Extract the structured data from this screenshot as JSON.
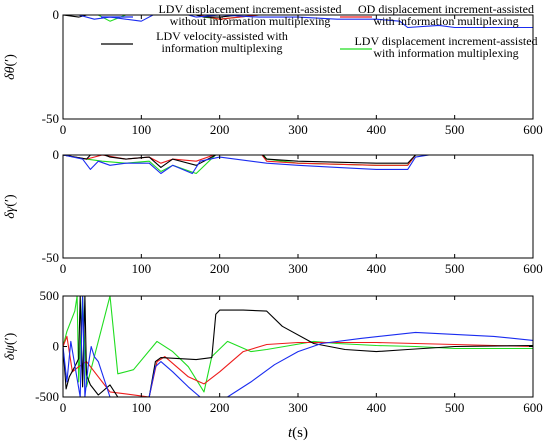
{
  "chart_data": {
    "type": "line",
    "colors": {
      "blue": "#1a2cf0",
      "black": "#000000",
      "red": "#ee1c1c",
      "green": "#20dd20"
    },
    "legend": [
      {
        "lines": [
          "LDV displacement increment-assisted",
          "without information multiplexing"
        ],
        "color": "blue"
      },
      {
        "lines": [
          "OD displacement increment-assisted",
          "with information multiplexing"
        ],
        "color": "red"
      },
      {
        "lines": [
          "LDV velocity-assisted with",
          "information multiplexing"
        ],
        "color": "black"
      },
      {
        "lines": [
          "LDV displacement increment-assisted",
          "with information multiplexing"
        ],
        "color": "green"
      }
    ],
    "xlabel_var": "t",
    "xlabel_unit": "(s)",
    "x_ticks": [
      "0",
      "100",
      "200",
      "300",
      "400",
      "500",
      "600"
    ],
    "xlim": [
      0,
      600
    ],
    "panels": [
      {
        "ylabel_sym": "δθ",
        "ylabel_unit": "(′)",
        "ylim": [
          -50,
          0
        ],
        "y_ticks": [
          "0",
          "-50"
        ],
        "series": {
          "blue": [
            [
              0,
              0
            ],
            [
              20,
              0
            ],
            [
              40,
              -2
            ],
            [
              60,
              -1
            ],
            [
              80,
              -2
            ],
            [
              100,
              -3
            ],
            [
              120,
              1
            ],
            [
              140,
              2
            ],
            [
              170,
              -1
            ],
            [
              200,
              0
            ],
            [
              250,
              -1
            ],
            [
              300,
              -1
            ],
            [
              350,
              -2
            ],
            [
              400,
              -2
            ],
            [
              430,
              -3
            ],
            [
              440,
              -6
            ],
            [
              480,
              -5
            ],
            [
              500,
              -6
            ],
            [
              600,
              -6
            ]
          ],
          "black": [
            [
              0,
              0
            ],
            [
              20,
              -1
            ],
            [
              40,
              1
            ],
            [
              60,
              2
            ],
            [
              80,
              1
            ],
            [
              100,
              2
            ],
            [
              120,
              3
            ],
            [
              140,
              2
            ],
            [
              160,
              1
            ],
            [
              180,
              -1
            ],
            [
              200,
              -1
            ],
            [
              250,
              1
            ],
            [
              300,
              0
            ],
            [
              400,
              1
            ],
            [
              500,
              0
            ],
            [
              600,
              0
            ]
          ],
          "red": [
            [
              0,
              0
            ],
            [
              30,
              0
            ],
            [
              60,
              1
            ],
            [
              100,
              1
            ],
            [
              130,
              3
            ],
            [
              150,
              5
            ],
            [
              170,
              0
            ],
            [
              200,
              -2
            ],
            [
              250,
              0
            ],
            [
              300,
              1
            ],
            [
              400,
              1
            ],
            [
              500,
              1
            ],
            [
              600,
              1
            ]
          ],
          "green": [
            [
              0,
              0
            ],
            [
              20,
              0
            ],
            [
              40,
              1
            ],
            [
              60,
              -3
            ],
            [
              80,
              0
            ],
            [
              100,
              1
            ],
            [
              120,
              2
            ],
            [
              140,
              4
            ],
            [
              160,
              2
            ],
            [
              180,
              -1
            ],
            [
              200,
              -2
            ],
            [
              250,
              0
            ],
            [
              300,
              0
            ],
            [
              400,
              0
            ],
            [
              500,
              0
            ],
            [
              600,
              0
            ]
          ]
        }
      },
      {
        "ylabel_sym": "δγ",
        "ylabel_unit": "(′)",
        "ylim": [
          -50,
          0
        ],
        "y_ticks": [
          "0",
          "-50"
        ],
        "series": {
          "blue": [
            [
              0,
              0
            ],
            [
              25,
              -2
            ],
            [
              35,
              -7
            ],
            [
              45,
              -3
            ],
            [
              60,
              -5
            ],
            [
              80,
              -4
            ],
            [
              110,
              -4
            ],
            [
              125,
              -9
            ],
            [
              140,
              -5
            ],
            [
              165,
              -9
            ],
            [
              175,
              -3
            ],
            [
              200,
              -1
            ],
            [
              260,
              -4
            ],
            [
              300,
              -5
            ],
            [
              350,
              -6
            ],
            [
              400,
              -7
            ],
            [
              440,
              -7
            ],
            [
              450,
              -1
            ],
            [
              500,
              2
            ],
            [
              520,
              0
            ],
            [
              600,
              0
            ]
          ],
          "black": [
            [
              0,
              0
            ],
            [
              30,
              -2
            ],
            [
              40,
              2
            ],
            [
              60,
              -1
            ],
            [
              80,
              -2
            ],
            [
              110,
              -1
            ],
            [
              125,
              -6
            ],
            [
              140,
              -2
            ],
            [
              170,
              -5
            ],
            [
              200,
              1
            ],
            [
              250,
              2
            ],
            [
              260,
              -2
            ],
            [
              300,
              -3
            ],
            [
              400,
              -4
            ],
            [
              440,
              -4
            ],
            [
              450,
              0
            ],
            [
              490,
              2
            ],
            [
              500,
              1
            ],
            [
              600,
              1
            ]
          ],
          "red": [
            [
              0,
              0
            ],
            [
              30,
              -2
            ],
            [
              50,
              0
            ],
            [
              80,
              -2
            ],
            [
              110,
              -1
            ],
            [
              125,
              -4
            ],
            [
              140,
              -2
            ],
            [
              170,
              -3
            ],
            [
              200,
              1
            ],
            [
              250,
              2
            ],
            [
              260,
              -3
            ],
            [
              300,
              -4
            ],
            [
              400,
              -5
            ],
            [
              440,
              -5
            ],
            [
              450,
              0
            ],
            [
              600,
              0
            ]
          ],
          "green": [
            [
              0,
              0
            ],
            [
              30,
              -2
            ],
            [
              50,
              -3
            ],
            [
              80,
              -4
            ],
            [
              110,
              -3
            ],
            [
              125,
              -8
            ],
            [
              140,
              -5
            ],
            [
              170,
              -9
            ],
            [
              200,
              2
            ],
            [
              250,
              3
            ],
            [
              260,
              -2
            ],
            [
              300,
              -4
            ],
            [
              400,
              -5
            ],
            [
              440,
              -5
            ],
            [
              450,
              0
            ],
            [
              600,
              0
            ]
          ]
        }
      },
      {
        "ylabel_sym": "δψ",
        "ylabel_unit": "(′)",
        "ylim": [
          -500,
          500
        ],
        "y_ticks": [
          "500",
          "0",
          "-500"
        ],
        "series": {
          "blue": [
            [
              0,
              0
            ],
            [
              5,
              -350
            ],
            [
              10,
              50
            ],
            [
              22,
              -500
            ],
            [
              25,
              500
            ],
            [
              28,
              -500
            ],
            [
              32,
              -200
            ],
            [
              36,
              0
            ],
            [
              40,
              -100
            ],
            [
              45,
              -150
            ],
            [
              60,
              -500
            ],
            [
              110,
              -500
            ],
            [
              118,
              -200
            ],
            [
              125,
              -150
            ],
            [
              140,
              -250
            ],
            [
              160,
              -400
            ],
            [
              175,
              -500
            ],
            [
              210,
              -500
            ],
            [
              240,
              -350
            ],
            [
              270,
              -180
            ],
            [
              300,
              -50
            ],
            [
              330,
              30
            ],
            [
              380,
              80
            ],
            [
              450,
              140
            ],
            [
              500,
              120
            ],
            [
              550,
              100
            ],
            [
              600,
              60
            ]
          ],
          "black": [
            [
              0,
              0
            ],
            [
              4,
              -420
            ],
            [
              8,
              -300
            ],
            [
              15,
              -200
            ],
            [
              20,
              -120
            ],
            [
              22,
              500
            ],
            [
              25,
              -400
            ],
            [
              28,
              500
            ],
            [
              30,
              -280
            ],
            [
              35,
              -380
            ],
            [
              45,
              -480
            ],
            [
              60,
              -380
            ],
            [
              70,
              -500
            ],
            [
              110,
              -500
            ],
            [
              118,
              -150
            ],
            [
              125,
              -110
            ],
            [
              170,
              -130
            ],
            [
              190,
              -110
            ],
            [
              195,
              320
            ],
            [
              200,
              360
            ],
            [
              230,
              360
            ],
            [
              260,
              350
            ],
            [
              280,
              200
            ],
            [
              320,
              30
            ],
            [
              360,
              -30
            ],
            [
              400,
              -50
            ],
            [
              440,
              -30
            ],
            [
              500,
              0
            ],
            [
              600,
              10
            ]
          ],
          "red": [
            [
              0,
              0
            ],
            [
              5,
              100
            ],
            [
              12,
              -250
            ],
            [
              20,
              -200
            ],
            [
              30,
              -150
            ],
            [
              60,
              -450
            ],
            [
              110,
              -500
            ],
            [
              120,
              -150
            ],
            [
              130,
              -100
            ],
            [
              160,
              -300
            ],
            [
              180,
              -370
            ],
            [
              200,
              -250
            ],
            [
              230,
              -50
            ],
            [
              260,
              20
            ],
            [
              300,
              40
            ],
            [
              350,
              40
            ],
            [
              400,
              40
            ],
            [
              450,
              30
            ],
            [
              500,
              20
            ],
            [
              600,
              0
            ]
          ],
          "green": [
            [
              0,
              0
            ],
            [
              5,
              150
            ],
            [
              15,
              350
            ],
            [
              18,
              500
            ],
            [
              20,
              -350
            ],
            [
              25,
              500
            ],
            [
              30,
              -400
            ],
            [
              60,
              500
            ],
            [
              70,
              -270
            ],
            [
              90,
              -230
            ],
            [
              120,
              50
            ],
            [
              140,
              -50
            ],
            [
              160,
              -200
            ],
            [
              180,
              -450
            ],
            [
              190,
              -100
            ],
            [
              210,
              50
            ],
            [
              240,
              -50
            ],
            [
              260,
              -30
            ],
            [
              290,
              10
            ],
            [
              320,
              50
            ],
            [
              350,
              30
            ],
            [
              400,
              10
            ],
            [
              450,
              0
            ],
            [
              500,
              -20
            ],
            [
              600,
              -20
            ]
          ]
        }
      }
    ]
  }
}
